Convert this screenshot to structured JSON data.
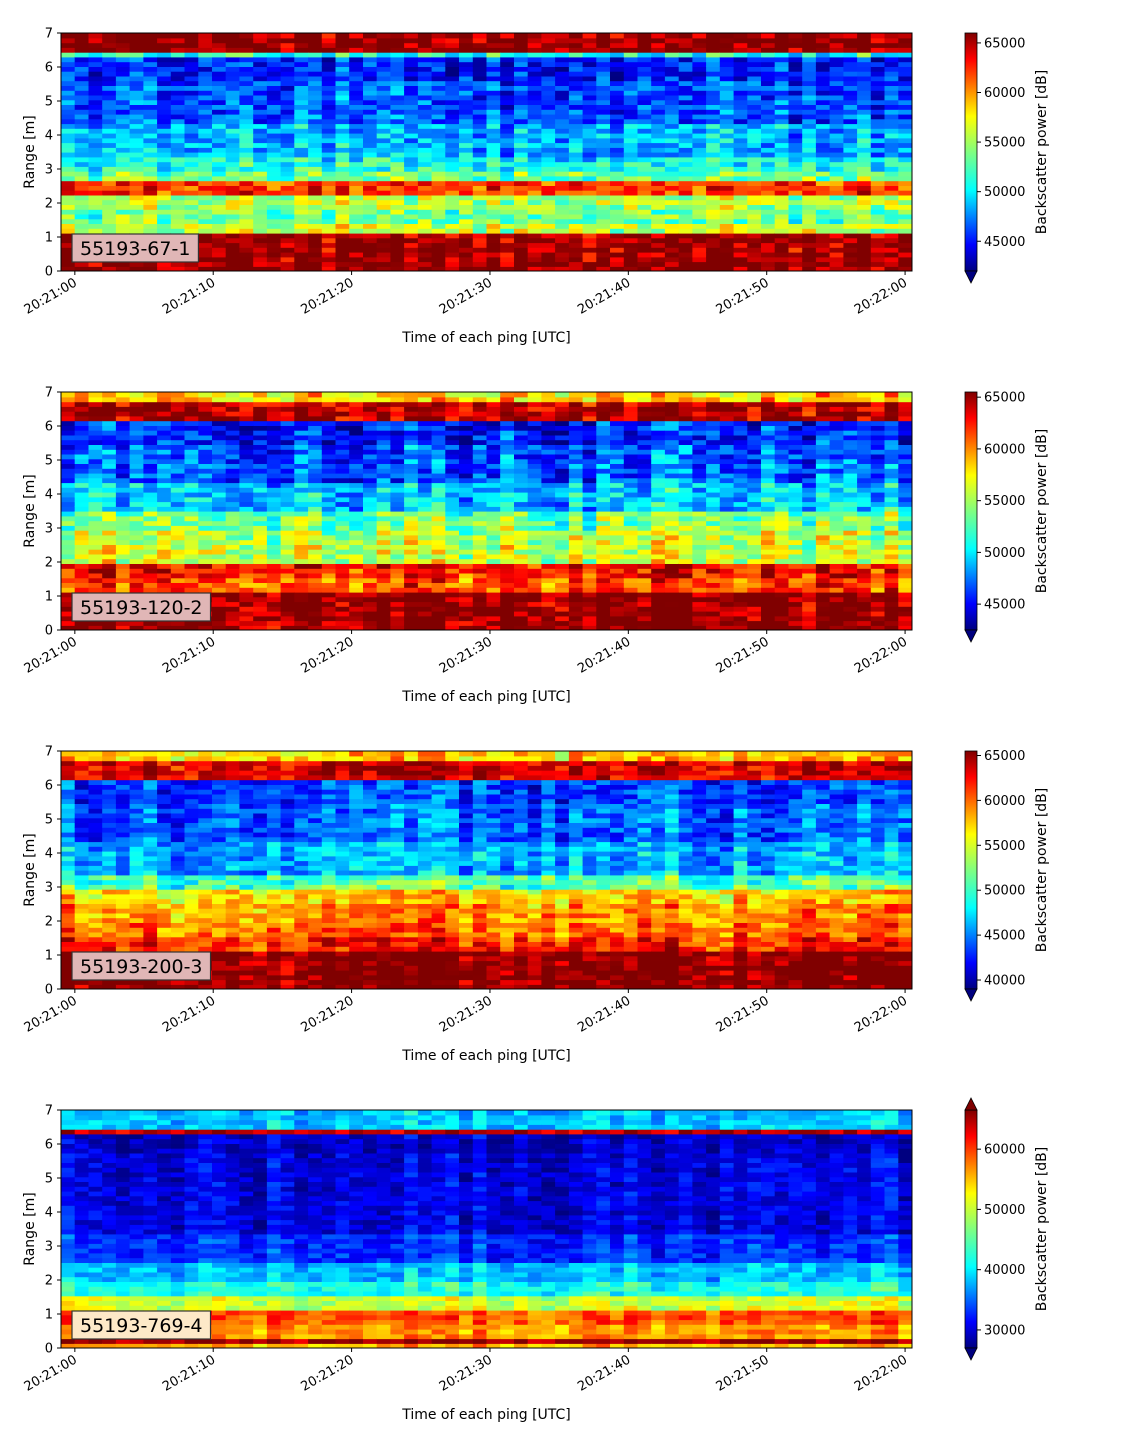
{
  "chart_data": [
    {
      "type": "heatmap",
      "badge": "55193-67-1",
      "xlabel": "Time of each ping [UTC]",
      "ylabel": "Range [m]",
      "x_ticks": [
        "20:21:00",
        "20:21:10",
        "20:21:20",
        "20:21:30",
        "20:21:40",
        "20:21:50",
        "20:22:00"
      ],
      "y_ticks": [
        "0",
        "1",
        "2",
        "3",
        "4",
        "5",
        "6",
        "7"
      ],
      "xlim_seconds": [
        -1,
        60.5
      ],
      "ylim": [
        0,
        7
      ],
      "colorbar_label": "Backscatter power [dB]",
      "colorbar_ticks": [
        "45000",
        "50000",
        "55000",
        "60000",
        "65000"
      ],
      "colorbar_range": [
        42000,
        66000
      ],
      "colorbar_extend": "min",
      "colormap": "jet",
      "bands": [
        {
          "range": [
            0.0,
            0.25
          ],
          "value": 66000
        },
        {
          "range": [
            0.25,
            1.1
          ],
          "value": 65500
        },
        {
          "range": [
            1.1,
            1.4
          ],
          "value": 56000
        },
        {
          "range": [
            1.4,
            1.8
          ],
          "value": 54000
        },
        {
          "range": [
            1.8,
            2.2
          ],
          "value": 55500
        },
        {
          "range": [
            2.2,
            2.7
          ],
          "value": 62000
        },
        {
          "range": [
            2.7,
            3.0
          ],
          "value": 54000
        },
        {
          "range": [
            3.0,
            3.3
          ],
          "value": 51500
        },
        {
          "range": [
            3.3,
            4.3
          ],
          "value": 49500
        },
        {
          "range": [
            4.3,
            5.6
          ],
          "value": 47000
        },
        {
          "range": [
            5.6,
            6.3
          ],
          "value": 46000
        },
        {
          "range": [
            6.3,
            6.5
          ],
          "value": 52000
        },
        {
          "range": [
            6.5,
            7.0
          ],
          "value": 66000
        }
      ]
    },
    {
      "type": "heatmap",
      "badge": "55193-120-2",
      "xlabel": "Time of each ping [UTC]",
      "ylabel": "Range [m]",
      "x_ticks": [
        "20:21:00",
        "20:21:10",
        "20:21:20",
        "20:21:30",
        "20:21:40",
        "20:21:50",
        "20:22:00"
      ],
      "y_ticks": [
        "0",
        "1",
        "2",
        "3",
        "4",
        "5",
        "6",
        "7"
      ],
      "xlim_seconds": [
        -1,
        60.5
      ],
      "ylim": [
        0,
        7
      ],
      "colorbar_label": "Backscatter power [dB]",
      "colorbar_ticks": [
        "45000",
        "50000",
        "55000",
        "60000",
        "65000"
      ],
      "colorbar_range": [
        42500,
        65500
      ],
      "colorbar_extend": "min",
      "colormap": "jet",
      "bands": [
        {
          "range": [
            0.0,
            1.15
          ],
          "value": 65500
        },
        {
          "range": [
            1.15,
            1.5
          ],
          "value": 61000
        },
        {
          "range": [
            1.5,
            2.0
          ],
          "value": 62500
        },
        {
          "range": [
            2.0,
            2.5
          ],
          "value": 56000
        },
        {
          "range": [
            2.5,
            3.0
          ],
          "value": 55500
        },
        {
          "range": [
            3.0,
            3.5
          ],
          "value": 54000
        },
        {
          "range": [
            3.5,
            4.3
          ],
          "value": 50000
        },
        {
          "range": [
            4.3,
            5.5
          ],
          "value": 47500
        },
        {
          "range": [
            5.5,
            6.2
          ],
          "value": 46000
        },
        {
          "range": [
            6.2,
            6.7
          ],
          "value": 64500
        },
        {
          "range": [
            6.7,
            7.0
          ],
          "value": 58000
        }
      ]
    },
    {
      "type": "heatmap",
      "badge": "55193-200-3",
      "xlabel": "Time of each ping [UTC]",
      "ylabel": "Range [m]",
      "x_ticks": [
        "20:21:00",
        "20:21:10",
        "20:21:20",
        "20:21:30",
        "20:21:40",
        "20:21:50",
        "20:22:00"
      ],
      "y_ticks": [
        "0",
        "1",
        "2",
        "3",
        "4",
        "5",
        "6",
        "7"
      ],
      "xlim_seconds": [
        -1,
        60.5
      ],
      "ylim": [
        0,
        7
      ],
      "colorbar_label": "Backscatter power [dB]",
      "colorbar_ticks": [
        "40000",
        "45000",
        "50000",
        "55000",
        "60000",
        "65000"
      ],
      "colorbar_range": [
        39000,
        65500
      ],
      "colorbar_extend": "min",
      "colormap": "jet",
      "bands": [
        {
          "range": [
            0.0,
            1.1
          ],
          "value": 65500
        },
        {
          "range": [
            1.1,
            1.5
          ],
          "value": 61500
        },
        {
          "range": [
            1.5,
            2.0
          ],
          "value": 59500
        },
        {
          "range": [
            2.0,
            2.5
          ],
          "value": 58500
        },
        {
          "range": [
            2.5,
            3.0
          ],
          "value": 57000
        },
        {
          "range": [
            3.0,
            3.4
          ],
          "value": 51000
        },
        {
          "range": [
            3.4,
            4.3
          ],
          "value": 47000
        },
        {
          "range": [
            4.3,
            5.5
          ],
          "value": 45000
        },
        {
          "range": [
            5.5,
            6.2
          ],
          "value": 44000
        },
        {
          "range": [
            6.2,
            6.7
          ],
          "value": 63500
        },
        {
          "range": [
            6.7,
            7.0
          ],
          "value": 57000
        }
      ]
    },
    {
      "type": "heatmap",
      "badge": "55193-769-4",
      "xlabel": "Time of each ping [UTC]",
      "ylabel": "Range [m]",
      "x_ticks": [
        "20:21:00",
        "20:21:10",
        "20:21:20",
        "20:21:30",
        "20:21:40",
        "20:21:50",
        "20:22:00"
      ],
      "y_ticks": [
        "0",
        "1",
        "2",
        "3",
        "4",
        "5",
        "6",
        "7"
      ],
      "xlim_seconds": [
        -1,
        60.5
      ],
      "ylim": [
        0,
        7
      ],
      "colorbar_label": "Backscatter power [dB]",
      "colorbar_ticks": [
        "30000",
        "40000",
        "50000",
        "60000"
      ],
      "colorbar_range": [
        27000,
        66500
      ],
      "colorbar_extend": "both",
      "colormap": "jet",
      "bands": [
        {
          "range": [
            0.0,
            0.2
          ],
          "value": 55000
        },
        {
          "range": [
            0.2,
            0.3
          ],
          "value": 66000
        },
        {
          "range": [
            0.3,
            0.7
          ],
          "value": 56000
        },
        {
          "range": [
            0.7,
            1.1
          ],
          "value": 58500
        },
        {
          "range": [
            1.1,
            1.6
          ],
          "value": 50000
        },
        {
          "range": [
            1.6,
            2.0
          ],
          "value": 43000
        },
        {
          "range": [
            2.0,
            2.5
          ],
          "value": 39500
        },
        {
          "range": [
            2.5,
            3.3
          ],
          "value": 34000
        },
        {
          "range": [
            3.3,
            5.8
          ],
          "value": 31000
        },
        {
          "range": [
            5.8,
            6.3
          ],
          "value": 30000
        },
        {
          "range": [
            6.3,
            6.5
          ],
          "value": 64000
        },
        {
          "range": [
            6.5,
            7.0
          ],
          "value": 40000
        }
      ]
    }
  ]
}
